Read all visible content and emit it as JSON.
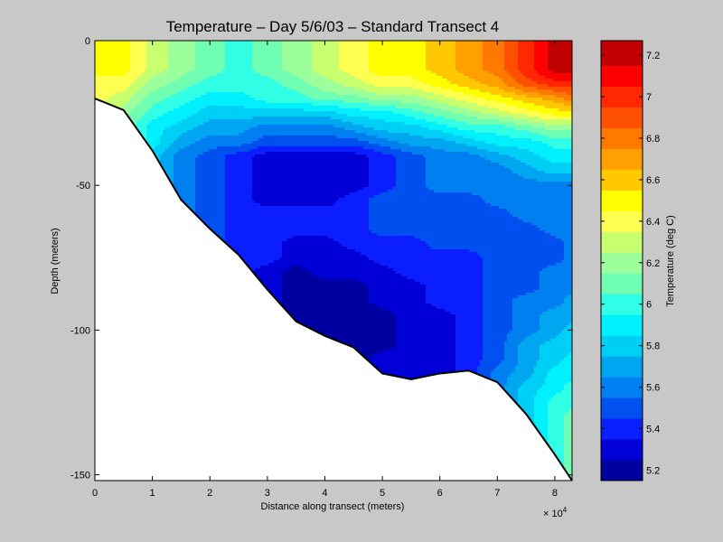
{
  "chart_data": [
    {
      "type": "contour",
      "title": "Temperature – Day 5/6/03 – Standard Transect 4",
      "xlabel": "Distance along transect (meters)",
      "ylabel": "Depth (meters)",
      "x_multiplier_base": "× 10",
      "x_multiplier_exponent": "4",
      "xlim": [
        0,
        83000
      ],
      "ylim": [
        -152,
        0
      ],
      "x_ticks": [
        {
          "value": 0,
          "label": "0"
        },
        {
          "value": 10000,
          "label": "1"
        },
        {
          "value": 20000,
          "label": "2"
        },
        {
          "value": 30000,
          "label": "3"
        },
        {
          "value": 40000,
          "label": "4"
        },
        {
          "value": 50000,
          "label": "5"
        },
        {
          "value": 60000,
          "label": "6"
        },
        {
          "value": 70000,
          "label": "7"
        },
        {
          "value": 80000,
          "label": "8"
        }
      ],
      "y_ticks": [
        {
          "value": 0,
          "label": "0"
        },
        {
          "value": -50,
          "label": "-50"
        },
        {
          "value": -100,
          "label": "-100"
        },
        {
          "value": -150,
          "label": "-150"
        }
      ],
      "bottom_profile": [
        {
          "x": 0,
          "y": -20
        },
        {
          "x": 5000,
          "y": -24
        },
        {
          "x": 10000,
          "y": -38
        },
        {
          "x": 15000,
          "y": -55
        },
        {
          "x": 20000,
          "y": -65
        },
        {
          "x": 25000,
          "y": -74
        },
        {
          "x": 30000,
          "y": -86
        },
        {
          "x": 35000,
          "y": -97
        },
        {
          "x": 40000,
          "y": -102
        },
        {
          "x": 45000,
          "y": -106
        },
        {
          "x": 50000,
          "y": -115
        },
        {
          "x": 55000,
          "y": -117
        },
        {
          "x": 60000,
          "y": -115
        },
        {
          "x": 65000,
          "y": -114
        },
        {
          "x": 70000,
          "y": -118
        },
        {
          "x": 75000,
          "y": -129
        },
        {
          "x": 80000,
          "y": -143
        },
        {
          "x": 83000,
          "y": -152
        }
      ],
      "temperature_field": {
        "x": [
          0,
          5000,
          10000,
          15000,
          20000,
          25000,
          30000,
          35000,
          40000,
          45000,
          50000,
          55000,
          60000,
          65000,
          70000,
          75000,
          80000,
          83000
        ],
        "depth": [
          0,
          5,
          10,
          15,
          20,
          25,
          30,
          35,
          40,
          45,
          50,
          55,
          60,
          65,
          70,
          75,
          80,
          85,
          90,
          95,
          100,
          105,
          110,
          115,
          120,
          125,
          130,
          135,
          140,
          145,
          150
        ],
        "unit": "deg C",
        "values_by_depth": [
          [
            6.5,
            6.5,
            6.3,
            6.2,
            6.1,
            6.0,
            6.1,
            6.2,
            6.3,
            6.4,
            6.5,
            6.5,
            6.6,
            6.7,
            6.8,
            7.0,
            7.2,
            7.2
          ],
          [
            6.5,
            6.5,
            6.3,
            6.2,
            6.1,
            6.0,
            6.1,
            6.2,
            6.3,
            6.4,
            6.5,
            6.5,
            6.6,
            6.7,
            6.8,
            7.0,
            7.2,
            7.2
          ],
          [
            6.5,
            6.5,
            6.3,
            6.2,
            6.1,
            6.0,
            6.1,
            6.2,
            6.3,
            6.4,
            6.5,
            6.5,
            6.6,
            6.7,
            6.8,
            7.0,
            7.2,
            7.2
          ],
          [
            6.4,
            6.4,
            6.2,
            6.1,
            6.0,
            6.0,
            6.0,
            6.1,
            6.2,
            6.3,
            6.4,
            6.4,
            6.5,
            6.6,
            6.7,
            6.9,
            7.0,
            7.0
          ],
          [
            6.4,
            6.3,
            6.1,
            6.0,
            5.9,
            5.9,
            6.0,
            6.0,
            6.1,
            6.1,
            6.2,
            6.2,
            6.3,
            6.4,
            6.5,
            6.6,
            6.7,
            6.8
          ],
          [
            6.3,
            6.2,
            6.0,
            5.9,
            5.8,
            5.8,
            5.8,
            5.8,
            5.8,
            5.9,
            5.9,
            6.0,
            6.1,
            6.2,
            6.3,
            6.4,
            6.5,
            6.5
          ],
          [
            6.3,
            6.1,
            5.9,
            5.8,
            5.7,
            5.7,
            5.6,
            5.6,
            5.6,
            5.7,
            5.8,
            5.8,
            5.9,
            6.0,
            6.0,
            6.1,
            6.2,
            6.2
          ],
          [
            6.3,
            6.1,
            5.9,
            5.7,
            5.6,
            5.6,
            5.5,
            5.5,
            5.5,
            5.5,
            5.6,
            5.7,
            5.7,
            5.8,
            5.9,
            5.9,
            6.0,
            6.0
          ],
          [
            6.3,
            6.1,
            5.8,
            5.6,
            5.5,
            5.4,
            5.3,
            5.3,
            5.3,
            5.3,
            5.4,
            5.5,
            5.6,
            5.6,
            5.7,
            5.8,
            5.9,
            5.9
          ],
          [
            6.3,
            6.1,
            5.8,
            5.6,
            5.5,
            5.4,
            5.3,
            5.3,
            5.3,
            5.3,
            5.4,
            5.5,
            5.6,
            5.6,
            5.6,
            5.7,
            5.8,
            5.8
          ],
          [
            6.3,
            6.1,
            5.8,
            5.6,
            5.5,
            5.4,
            5.3,
            5.3,
            5.3,
            5.3,
            5.4,
            5.5,
            5.6,
            5.6,
            5.6,
            5.6,
            5.6,
            5.6
          ],
          [
            6.3,
            6.1,
            5.8,
            5.6,
            5.5,
            5.4,
            5.3,
            5.3,
            5.3,
            5.4,
            5.5,
            5.5,
            5.5,
            5.5,
            5.6,
            5.6,
            5.6,
            5.6
          ],
          [
            6.3,
            6.1,
            5.8,
            5.6,
            5.5,
            5.4,
            5.4,
            5.4,
            5.4,
            5.4,
            5.5,
            5.5,
            5.5,
            5.5,
            5.5,
            5.6,
            5.6,
            5.6
          ],
          [
            6.3,
            6.1,
            5.8,
            5.6,
            5.5,
            5.4,
            5.4,
            5.4,
            5.4,
            5.4,
            5.5,
            5.5,
            5.5,
            5.5,
            5.5,
            5.5,
            5.6,
            5.6
          ],
          [
            6.3,
            6.1,
            5.8,
            5.6,
            5.5,
            5.4,
            5.4,
            5.3,
            5.3,
            5.4,
            5.4,
            5.4,
            5.5,
            5.5,
            5.5,
            5.5,
            5.5,
            5.6
          ],
          [
            6.3,
            6.1,
            5.8,
            5.6,
            5.5,
            5.4,
            5.4,
            5.3,
            5.3,
            5.3,
            5.4,
            5.4,
            5.4,
            5.4,
            5.5,
            5.5,
            5.5,
            5.6
          ],
          [
            6.3,
            6.1,
            5.8,
            5.6,
            5.5,
            5.4,
            5.3,
            5.2,
            5.3,
            5.3,
            5.3,
            5.4,
            5.4,
            5.4,
            5.5,
            5.5,
            5.6,
            5.6
          ],
          [
            6.3,
            6.1,
            5.8,
            5.6,
            5.5,
            5.4,
            5.3,
            5.2,
            5.2,
            5.2,
            5.3,
            5.3,
            5.4,
            5.4,
            5.5,
            5.5,
            5.6,
            5.6
          ],
          [
            6.3,
            6.1,
            5.8,
            5.6,
            5.5,
            5.4,
            5.3,
            5.2,
            5.2,
            5.2,
            5.3,
            5.3,
            5.4,
            5.4,
            5.5,
            5.6,
            5.6,
            5.7
          ],
          [
            6.3,
            6.1,
            5.8,
            5.6,
            5.5,
            5.4,
            5.3,
            5.2,
            5.2,
            5.2,
            5.2,
            5.3,
            5.3,
            5.4,
            5.5,
            5.6,
            5.7,
            5.7
          ],
          [
            6.3,
            6.1,
            5.8,
            5.6,
            5.5,
            5.4,
            5.3,
            5.2,
            5.2,
            5.2,
            5.2,
            5.3,
            5.3,
            5.4,
            5.5,
            5.6,
            5.7,
            5.8
          ],
          [
            6.3,
            6.1,
            5.8,
            5.6,
            5.5,
            5.4,
            5.3,
            5.2,
            5.2,
            5.2,
            5.2,
            5.3,
            5.3,
            5.4,
            5.5,
            5.7,
            5.8,
            5.8
          ],
          [
            6.3,
            6.1,
            5.8,
            5.6,
            5.5,
            5.4,
            5.3,
            5.2,
            5.2,
            5.2,
            5.3,
            5.3,
            5.3,
            5.4,
            5.5,
            5.7,
            5.8,
            5.9
          ],
          [
            6.3,
            6.1,
            5.8,
            5.6,
            5.5,
            5.4,
            5.3,
            5.2,
            5.2,
            5.2,
            5.3,
            5.3,
            5.3,
            5.4,
            5.6,
            5.7,
            5.9,
            5.9
          ],
          [
            6.3,
            6.1,
            5.8,
            5.6,
            5.5,
            5.4,
            5.3,
            5.2,
            5.2,
            5.2,
            5.3,
            5.3,
            5.3,
            5.4,
            5.6,
            5.8,
            5.9,
            6.0
          ],
          [
            6.3,
            6.1,
            5.8,
            5.6,
            5.5,
            5.4,
            5.3,
            5.2,
            5.2,
            5.2,
            5.3,
            5.3,
            5.3,
            5.4,
            5.6,
            5.8,
            6.0,
            6.0
          ],
          [
            6.3,
            6.1,
            5.8,
            5.6,
            5.5,
            5.4,
            5.3,
            5.2,
            5.2,
            5.2,
            5.3,
            5.3,
            5.3,
            5.4,
            5.6,
            5.8,
            6.0,
            6.1
          ],
          [
            6.3,
            6.1,
            5.8,
            5.6,
            5.5,
            5.4,
            5.3,
            5.2,
            5.2,
            5.2,
            5.3,
            5.3,
            5.3,
            5.4,
            5.6,
            5.8,
            6.0,
            6.1
          ],
          [
            6.3,
            6.1,
            5.8,
            5.6,
            5.5,
            5.4,
            5.3,
            5.2,
            5.2,
            5.2,
            5.3,
            5.3,
            5.3,
            5.4,
            5.6,
            5.8,
            6.0,
            6.1
          ],
          [
            6.3,
            6.1,
            5.8,
            5.6,
            5.5,
            5.4,
            5.3,
            5.2,
            5.2,
            5.2,
            5.3,
            5.3,
            5.3,
            5.4,
            5.6,
            5.8,
            6.0,
            6.1
          ],
          [
            6.3,
            6.1,
            5.8,
            5.6,
            5.5,
            5.4,
            5.3,
            5.2,
            5.2,
            5.2,
            5.3,
            5.3,
            5.3,
            5.4,
            5.6,
            5.8,
            6.0,
            6.1
          ]
        ]
      }
    },
    {
      "type": "colorbar",
      "label": "Temperature (deg C)",
      "range": [
        5.15,
        7.27
      ],
      "ticks": [
        {
          "value": 5.2,
          "label": "5.2"
        },
        {
          "value": 5.4,
          "label": "5.4"
        },
        {
          "value": 5.6,
          "label": "5.6"
        },
        {
          "value": 5.8,
          "label": "5.8"
        },
        {
          "value": 6.0,
          "label": "6"
        },
        {
          "value": 6.2,
          "label": "6.2"
        },
        {
          "value": 6.4,
          "label": "6.4"
        },
        {
          "value": 6.6,
          "label": "6.6"
        },
        {
          "value": 6.8,
          "label": "6.8"
        },
        {
          "value": 7.0,
          "label": "7"
        },
        {
          "value": 7.2,
          "label": "7.2"
        }
      ],
      "levels": [
        {
          "lo": 5.15,
          "hi": 5.25,
          "color": "#0000a0"
        },
        {
          "lo": 5.25,
          "hi": 5.35,
          "color": "#0000d6"
        },
        {
          "lo": 5.35,
          "hi": 5.45,
          "color": "#0a1eff"
        },
        {
          "lo": 5.45,
          "hi": 5.55,
          "color": "#0050f0"
        },
        {
          "lo": 5.55,
          "hi": 5.65,
          "color": "#0080f0"
        },
        {
          "lo": 5.65,
          "hi": 5.75,
          "color": "#00a6f0"
        },
        {
          "lo": 5.75,
          "hi": 5.85,
          "color": "#00cff5"
        },
        {
          "lo": 5.85,
          "hi": 5.95,
          "color": "#00f0ff"
        },
        {
          "lo": 5.95,
          "hi": 6.05,
          "color": "#30ffe6"
        },
        {
          "lo": 6.05,
          "hi": 6.15,
          "color": "#70ffb2"
        },
        {
          "lo": 6.15,
          "hi": 6.25,
          "color": "#9cff9c"
        },
        {
          "lo": 6.25,
          "hi": 6.35,
          "color": "#c8ff6e"
        },
        {
          "lo": 6.35,
          "hi": 6.45,
          "color": "#ffff50"
        },
        {
          "lo": 6.45,
          "hi": 6.55,
          "color": "#ffff00"
        },
        {
          "lo": 6.55,
          "hi": 6.65,
          "color": "#ffc800"
        },
        {
          "lo": 6.65,
          "hi": 6.75,
          "color": "#ffa000"
        },
        {
          "lo": 6.75,
          "hi": 6.85,
          "color": "#ff7800"
        },
        {
          "lo": 6.85,
          "hi": 6.95,
          "color": "#ff5000"
        },
        {
          "lo": 6.95,
          "hi": 7.05,
          "color": "#ff2800"
        },
        {
          "lo": 7.05,
          "hi": 7.15,
          "color": "#ff0000"
        },
        {
          "lo": 7.15,
          "hi": 7.27,
          "color": "#c00000"
        }
      ]
    }
  ]
}
